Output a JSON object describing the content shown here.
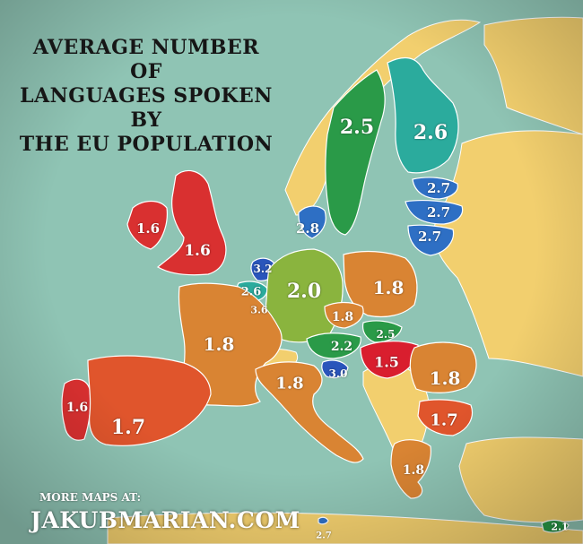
{
  "title_lines": [
    "AVERAGE NUMBER OF",
    "LANGUAGES SPOKEN BY",
    "THE EU POPULATION"
  ],
  "footer": {
    "more_maps": "MORE MAPS AT:",
    "site": "JAKUBMARIAN.COM"
  },
  "colors": {
    "sea": "#8fc4b4",
    "non_eu_land": "#f2cf6e",
    "border": "#ffffff"
  },
  "chart_data": {
    "type": "choropleth",
    "regions": [
      {
        "name": "Sweden",
        "value": "2.5",
        "color": "#2a9a48"
      },
      {
        "name": "Finland",
        "value": "2.6",
        "color": "#2bab9d"
      },
      {
        "name": "Estonia",
        "value": "2.7",
        "color": "#2e6fc4"
      },
      {
        "name": "Latvia",
        "value": "2.7",
        "color": "#2e6fc4"
      },
      {
        "name": "Lithuania",
        "value": "2.7",
        "color": "#2e6fc4"
      },
      {
        "name": "Denmark",
        "value": "2.8",
        "color": "#2e6fc4"
      },
      {
        "name": "Ireland",
        "value": "1.6",
        "color": "#d93030"
      },
      {
        "name": "United Kingdom",
        "value": "1.6",
        "color": "#d93030"
      },
      {
        "name": "Netherlands",
        "value": "3.2",
        "color": "#2a55bb"
      },
      {
        "name": "Belgium",
        "value": "2.6",
        "color": "#2bab9d"
      },
      {
        "name": "Luxembourg",
        "value": "3.6",
        "color": "#2a55bb"
      },
      {
        "name": "Germany",
        "value": "2.0",
        "color": "#8ab43e"
      },
      {
        "name": "Poland",
        "value": "1.8",
        "color": "#d98433"
      },
      {
        "name": "Czech Republic",
        "value": "1.8",
        "color": "#d98433"
      },
      {
        "name": "Slovakia",
        "value": "2.5",
        "color": "#2a9a48"
      },
      {
        "name": "Austria",
        "value": "2.2",
        "color": "#2a9a48"
      },
      {
        "name": "Hungary",
        "value": "1.5",
        "color": "#d91e2e"
      },
      {
        "name": "Slovenia",
        "value": "3.0",
        "color": "#2a55bb"
      },
      {
        "name": "France",
        "value": "1.8",
        "color": "#d98433"
      },
      {
        "name": "Italy",
        "value": "1.8",
        "color": "#d98433"
      },
      {
        "name": "Romania",
        "value": "1.8",
        "color": "#d98433"
      },
      {
        "name": "Bulgaria",
        "value": "1.7",
        "color": "#e0552c"
      },
      {
        "name": "Greece",
        "value": "1.8",
        "color": "#d98433"
      },
      {
        "name": "Portugal",
        "value": "1.6",
        "color": "#d93030"
      },
      {
        "name": "Spain",
        "value": "1.7",
        "color": "#e0552c"
      },
      {
        "name": "Malta",
        "value": "2.7",
        "color": "#2e6fc4"
      },
      {
        "name": "Cyprus",
        "value": "2.1",
        "color": "#2a9a48"
      }
    ]
  }
}
